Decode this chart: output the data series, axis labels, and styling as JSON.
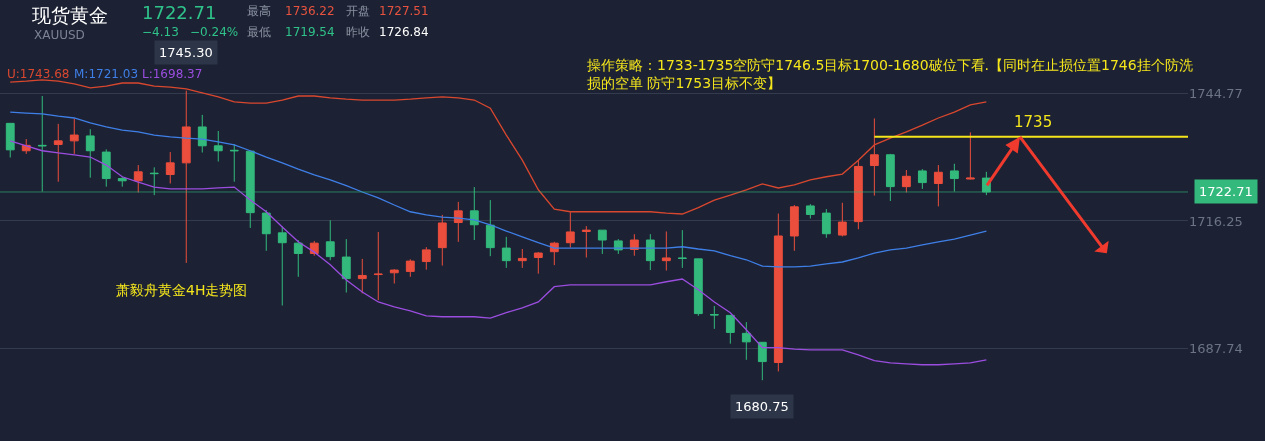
{
  "chart_data": {
    "type": "candlestick",
    "title": "现货黄金",
    "subtitle": "XAUUSD",
    "annotations": [
      "1722.71",
      "−4.13",
      "−0.24%",
      "最高",
      "1736.22",
      "开盘",
      "1727.51",
      "最低",
      "1719.54",
      "昨收",
      "1726.84",
      "操作策略：1733-1735空防守1746.5目标1700-1680破位下看.【同时在止损位置1746挂个防洗损的空单 防守1753目标不变】",
      "萧毅舟黄金4H走势图",
      {
        "text": "1745.30",
        "y": 1745.3
      },
      {
        "text": "1680.75",
        "y": 1680.75
      }
    ],
    "categories": [
      null,
      null,
      null,
      null,
      null,
      null,
      null,
      null,
      null,
      null,
      null,
      null,
      null,
      null,
      null,
      null,
      null,
      null,
      null,
      null,
      null,
      null,
      null,
      null,
      null,
      null,
      null,
      null,
      null,
      null,
      null,
      null,
      null,
      null,
      null,
      null,
      null,
      null,
      null,
      null,
      null,
      null,
      null,
      null,
      null,
      null,
      null,
      null,
      null,
      null,
      null,
      null,
      null,
      null,
      null,
      null,
      null,
      null,
      null,
      null,
      null,
      null
    ],
    "ohlc": [
      [
        1738.0,
        1738.0,
        1730.4,
        1732.1
      ],
      [
        1731.9,
        1734.5,
        1731.2,
        1733.1
      ],
      [
        1733.1,
        1744.1,
        1722.8,
        1733.0
      ],
      [
        1733.3,
        1737.9,
        1725.0,
        1734.1
      ],
      [
        1734.1,
        1739.1,
        1731.2,
        1735.4
      ],
      [
        1735.2,
        1736.7,
        1725.9,
        1731.9
      ],
      [
        1731.6,
        1732.2,
        1723.9,
        1725.7
      ],
      [
        1725.7,
        1726.1,
        1723.9,
        1725.2
      ],
      [
        1725.2,
        1728.7,
        1722.6,
        1727.2
      ],
      [
        1726.9,
        1728.2,
        1722.0,
        1726.8
      ],
      [
        1726.6,
        1731.6,
        1724.6,
        1729.2
      ],
      [
        1729.2,
        1745.3,
        1706.9,
        1737.2
      ],
      [
        1737.2,
        1739.9,
        1731.5,
        1733.0
      ],
      [
        1733.0,
        1736.3,
        1729.5,
        1731.9
      ],
      [
        1732.0,
        1733.4,
        1725.0,
        1731.9
      ],
      [
        1731.8,
        1731.8,
        1714.7,
        1718.1
      ],
      [
        1718.0,
        1718.7,
        1709.6,
        1713.4
      ],
      [
        1713.6,
        1715.0,
        1697.4,
        1711.4
      ],
      [
        1711.3,
        1712.0,
        1703.8,
        1709.0
      ],
      [
        1709.0,
        1711.8,
        1708.5,
        1711.3
      ],
      [
        1711.6,
        1716.4,
        1707.5,
        1708.3
      ],
      [
        1708.2,
        1712.2,
        1700.3,
        1703.4
      ],
      [
        1703.4,
        1707.8,
        1700.1,
        1704.1
      ],
      [
        1704.3,
        1713.8,
        1698.6,
        1704.4
      ],
      [
        1704.7,
        1705.5,
        1702.3,
        1705.3
      ],
      [
        1705.0,
        1707.7,
        1703.8,
        1707.3
      ],
      [
        1707.2,
        1710.4,
        1705.4,
        1709.8
      ],
      [
        1710.3,
        1717.6,
        1706.3,
        1715.8
      ],
      [
        1715.9,
        1720.5,
        1711.6,
        1718.5
      ],
      [
        1718.5,
        1723.8,
        1712.0,
        1715.4
      ],
      [
        1715.3,
        1720.9,
        1708.4,
        1710.3
      ],
      [
        1710.2,
        1712.7,
        1705.8,
        1707.4
      ],
      [
        1707.4,
        1710.0,
        1705.8,
        1707.9
      ],
      [
        1708.1,
        1709.3,
        1704.5,
        1709.1
      ],
      [
        1709.4,
        1711.6,
        1706.4,
        1711.3
      ],
      [
        1711.4,
        1718.2,
        1710.3,
        1713.8
      ],
      [
        1713.9,
        1715.1,
        1708.1,
        1714.2
      ],
      [
        1714.2,
        1714.2,
        1708.9,
        1712.0
      ],
      [
        1711.8,
        1712.2,
        1708.9,
        1709.8
      ],
      [
        1709.9,
        1713.3,
        1708.5,
        1712.0
      ],
      [
        1712.0,
        1713.3,
        1705.3,
        1707.4
      ],
      [
        1707.4,
        1713.9,
        1705.2,
        1708.0
      ],
      [
        1708.0,
        1714.2,
        1705.8,
        1707.9
      ],
      [
        1707.8,
        1707.8,
        1695.1,
        1695.6
      ],
      [
        1695.4,
        1697.3,
        1692.2,
        1695.3
      ],
      [
        1695.2,
        1695.2,
        1688.9,
        1691.4
      ],
      [
        1691.2,
        1693.7,
        1685.3,
        1689.3
      ],
      [
        1689.2,
        1689.2,
        1680.75,
        1684.9
      ],
      [
        1684.7,
        1717.9,
        1682.7,
        1712.9
      ],
      [
        1712.9,
        1719.8,
        1709.6,
        1719.4
      ],
      [
        1719.6,
        1720.0,
        1716.8,
        1717.7
      ],
      [
        1718.0,
        1718.9,
        1712.5,
        1713.4
      ],
      [
        1713.1,
        1720.3,
        1712.8,
        1716.0
      ],
      [
        1716.1,
        1729.8,
        1714.4,
        1728.4
      ],
      [
        1728.6,
        1739.1,
        1721.9,
        1731.0
      ],
      [
        1731.0,
        1731.2,
        1720.7,
        1723.9
      ],
      [
        1723.9,
        1727.6,
        1722.6,
        1726.2
      ],
      [
        1727.4,
        1727.8,
        1723.4,
        1724.8
      ],
      [
        1724.6,
        1728.7,
        1719.5,
        1727.1
      ],
      [
        1727.4,
        1729.0,
        1722.8,
        1725.7
      ],
      [
        1725.6,
        1736.0,
        1725.5,
        1725.8
      ],
      [
        1725.8,
        1727.2,
        1722.0,
        1722.71
      ]
    ],
    "colors": [
      "#33b97c",
      "#eb4e3d",
      "#33b97c",
      "#eb4e3d",
      "#eb4e3d",
      "#33b97c",
      "#33b97c",
      "#33b97c",
      "#eb4e3d",
      "#33b97c",
      "#eb4e3d",
      "#eb4e3d",
      "#33b97c",
      "#33b97c",
      "#33b97c",
      "#33b97c",
      "#33b97c",
      "#33b97c",
      "#33b97c",
      "#eb4e3d",
      "#33b97c",
      "#33b97c",
      "#eb4e3d",
      "#eb4e3d",
      "#eb4e3d",
      "#eb4e3d",
      "#eb4e3d",
      "#eb4e3d",
      "#eb4e3d",
      "#33b97c",
      "#33b97c",
      "#33b97c",
      "#eb4e3d",
      "#eb4e3d",
      "#eb4e3d",
      "#eb4e3d",
      "#eb4e3d",
      "#33b97c",
      "#33b97c",
      "#eb4e3d",
      "#33b97c",
      "#eb4e3d",
      "#33b97c",
      "#33b97c",
      "#33b97c",
      "#33b97c",
      "#33b97c",
      "#33b97c",
      "#eb4e3d",
      "#eb4e3d",
      "#33b97c",
      "#33b97c",
      "#eb4e3d",
      "#eb4e3d",
      "#eb4e3d",
      "#33b97c",
      "#eb4e3d",
      "#33b97c",
      "#eb4e3d",
      "#33b97c",
      "#eb4e3d",
      "#33b97c"
    ],
    "series": [
      {
        "type": "line",
        "name": "U:1743.68",
        "color": "#d9472f",
        "values": [
          1747.2,
          1747.4,
          1747.7,
          1747.4,
          1746.8,
          1745.9,
          1746.3,
          1747.0,
          1747.0,
          1746.3,
          1746.1,
          1745.7,
          1744.8,
          1743.9,
          1742.8,
          1742.5,
          1742.5,
          1743.2,
          1744.1,
          1744.1,
          1743.7,
          1743.4,
          1743.2,
          1743.2,
          1743.2,
          1743.4,
          1743.7,
          1743.9,
          1743.7,
          1743.2,
          1741.4,
          1735.4,
          1729.8,
          1723.2,
          1718.9,
          1718.3,
          1718.3,
          1718.3,
          1718.3,
          1718.3,
          1718.3,
          1718.0,
          1717.8,
          1719.2,
          1720.9,
          1722.0,
          1723.2,
          1724.5,
          1723.6,
          1724.3,
          1725.4,
          1726.1,
          1726.7,
          1729.8,
          1733.2,
          1734.7,
          1736.1,
          1737.6,
          1739.2,
          1740.5,
          1742.1,
          1742.8
        ]
      },
      {
        "type": "line",
        "name": "M:1721.03",
        "color": "#3f7fe8",
        "values": [
          1740.5,
          1740.3,
          1740.1,
          1739.6,
          1739.2,
          1738.1,
          1737.2,
          1736.5,
          1736.1,
          1735.4,
          1735.0,
          1734.7,
          1734.5,
          1733.9,
          1733.2,
          1731.9,
          1730.5,
          1729.2,
          1727.8,
          1726.5,
          1725.4,
          1724.1,
          1722.7,
          1721.4,
          1719.8,
          1718.3,
          1717.6,
          1717.1,
          1716.9,
          1716.5,
          1715.4,
          1714.0,
          1712.7,
          1711.4,
          1710.2,
          1710.2,
          1710.2,
          1710.2,
          1710.2,
          1710.2,
          1710.2,
          1710.2,
          1710.5,
          1710.0,
          1709.6,
          1708.5,
          1707.6,
          1706.2,
          1706.0,
          1706.0,
          1706.2,
          1706.7,
          1707.1,
          1708.0,
          1709.1,
          1709.8,
          1710.2,
          1710.9,
          1711.6,
          1712.2,
          1713.1,
          1714.0
        ]
      },
      {
        "type": "line",
        "name": "L:1698.37",
        "color": "#9b4de0",
        "values": [
          1734.1,
          1733.0,
          1731.9,
          1731.4,
          1731.0,
          1730.5,
          1728.7,
          1726.1,
          1724.9,
          1723.8,
          1723.4,
          1723.4,
          1723.4,
          1723.6,
          1723.8,
          1720.9,
          1718.3,
          1714.9,
          1711.6,
          1709.3,
          1706.5,
          1703.1,
          1700.4,
          1698.2,
          1697.1,
          1696.2,
          1695.1,
          1694.9,
          1694.9,
          1694.9,
          1694.6,
          1695.8,
          1696.9,
          1698.2,
          1701.6,
          1702.0,
          1702.0,
          1702.0,
          1702.0,
          1702.0,
          1702.0,
          1702.7,
          1703.3,
          1700.9,
          1698.2,
          1695.8,
          1692.0,
          1688.0,
          1688.0,
          1687.7,
          1687.5,
          1687.5,
          1687.5,
          1686.4,
          1685.1,
          1684.6,
          1684.4,
          1684.2,
          1684.2,
          1684.4,
          1684.6,
          1685.3
        ]
      }
    ],
    "ylim": [
      1667.2,
      1765.5
    ],
    "yticks": [
      1744.77,
      1716.25,
      1687.74
    ],
    "grid": "y",
    "tick_labels": "y",
    "ref_lines": [
      {
        "axis": "y",
        "value": 1722.71,
        "label": "1722.71",
        "color": "#33b97c"
      },
      {
        "axis": "y",
        "value": 1735,
        "label": "1735",
        "color": "#f5e61c"
      }
    ]
  }
}
